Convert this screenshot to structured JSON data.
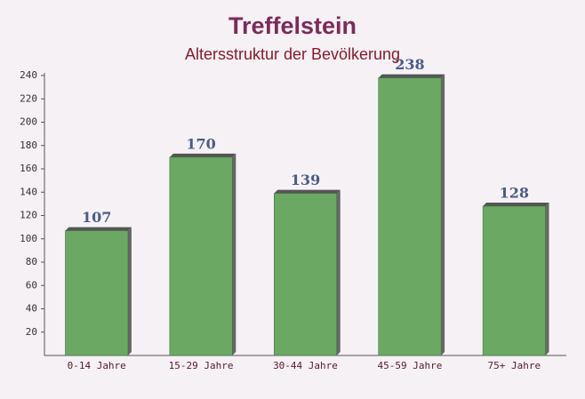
{
  "chart_data": {
    "type": "bar",
    "title": "Treffelstein",
    "subtitle": "Altersstruktur der Bevölkerung",
    "categories": [
      "0-14 Jahre",
      "15-29 Jahre",
      "30-44 Jahre",
      "45-59 Jahre",
      "75+ Jahre"
    ],
    "values": [
      107,
      170,
      139,
      238,
      128
    ],
    "color": "#6aa864",
    "ylim": [
      0,
      240
    ],
    "yticks": [
      20,
      40,
      60,
      80,
      100,
      120,
      140,
      160,
      180,
      200,
      220,
      240
    ]
  }
}
